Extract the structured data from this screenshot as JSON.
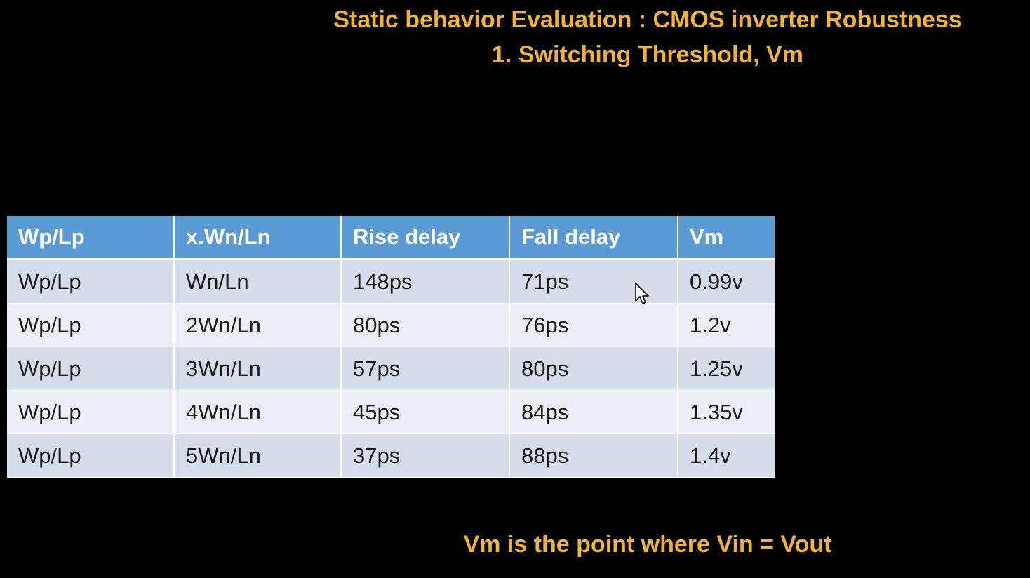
{
  "slide": {
    "title_line1": "Static behavior Evaluation : CMOS inverter Robustness",
    "title_line2": "1. Switching Threshold, Vm",
    "note": "Vm is the point where Vin = Vout"
  },
  "table": {
    "headers": [
      "Wp/Lp",
      "x.Wn/Ln",
      "Rise delay",
      "Fall delay",
      "Vm"
    ],
    "rows": [
      [
        "Wp/Lp",
        "Wn/Ln",
        "148ps",
        "71ps",
        "0.99v"
      ],
      [
        "Wp/Lp",
        "2Wn/Ln",
        "80ps",
        "76ps",
        "1.2v"
      ],
      [
        "Wp/Lp",
        "3Wn/Ln",
        "57ps",
        "80ps",
        "1.25v"
      ],
      [
        "Wp/Lp",
        "4Wn/Ln",
        "45ps",
        "84ps",
        "1.35v"
      ],
      [
        "Wp/Lp",
        "5Wn/Ln",
        "37ps",
        "88ps",
        "1.4v"
      ]
    ]
  },
  "colors": {
    "background": "#000000",
    "title_text": "#f0b430",
    "header_fill": "#5b9bd5",
    "row_odd_fill": "#d5dcea",
    "row_even_fill": "#ebeef6"
  },
  "icons": {
    "cursor": "mouse-pointer-icon"
  }
}
